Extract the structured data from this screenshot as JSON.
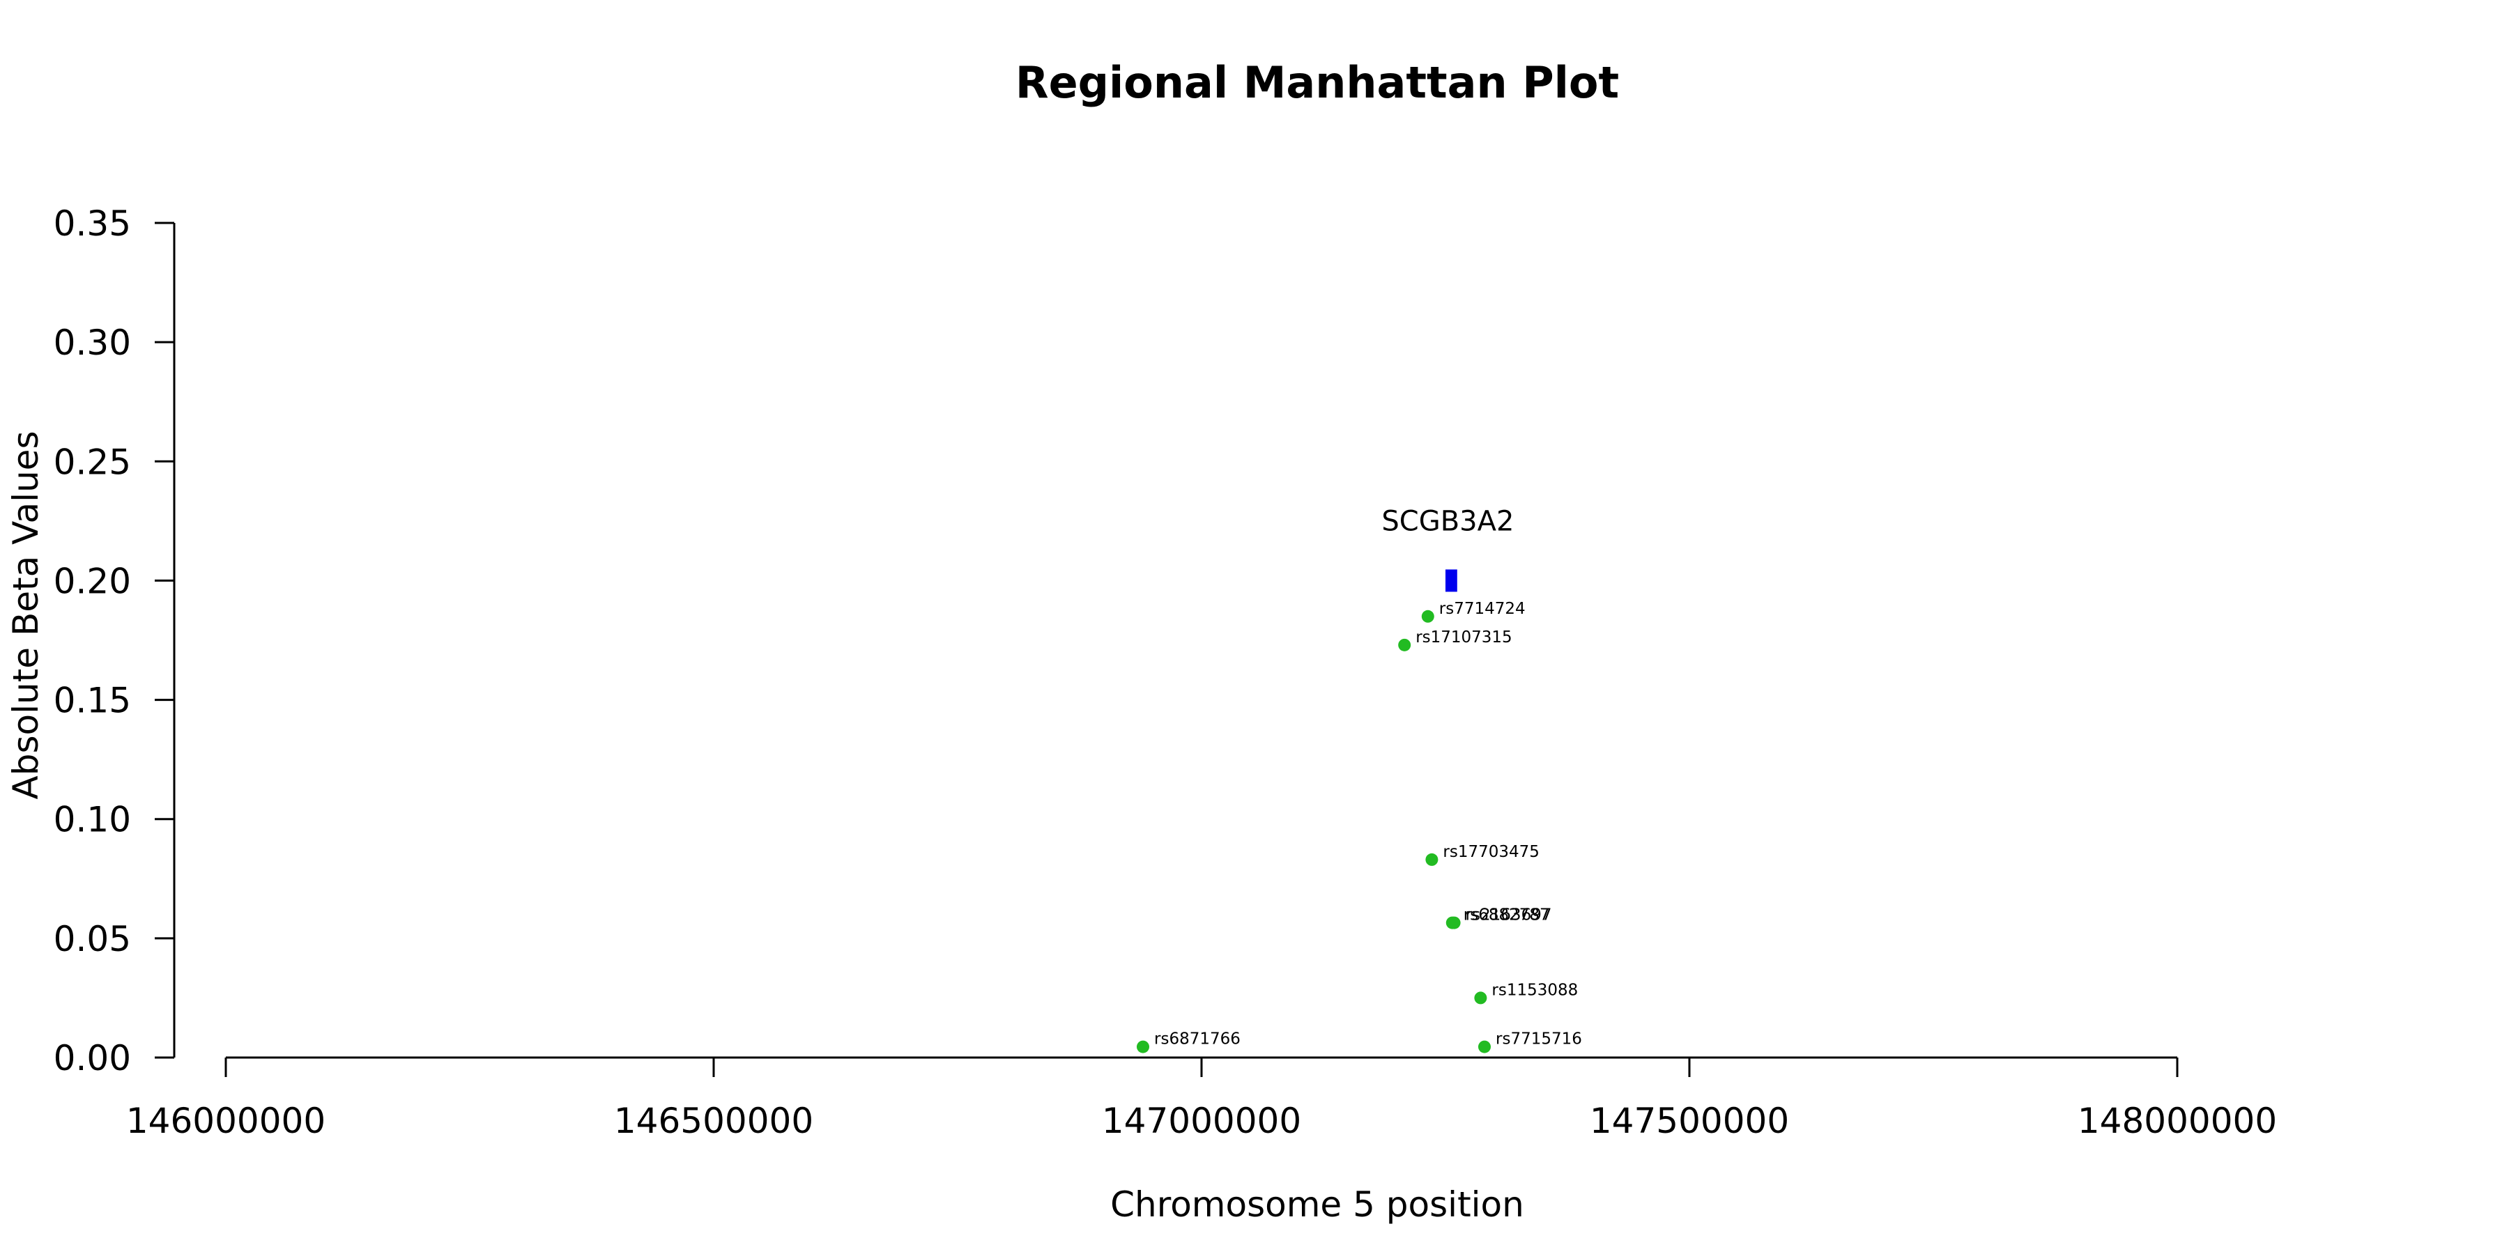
{
  "chart_data": {
    "type": "scatter",
    "title": "Regional Manhattan Plot",
    "xlabel": "Chromosome 5 position",
    "ylabel": "Absolute Beta Values",
    "xlim": [
      146000000,
      148000000
    ],
    "ylim": [
      0,
      0.35
    ],
    "x_ticks": [
      146000000,
      146500000,
      147000000,
      147500000,
      148000000
    ],
    "x_tick_labels": [
      "146000000",
      "146500000",
      "147000000",
      "147500000",
      "148000000"
    ],
    "y_ticks": [
      0,
      0.05,
      0.1,
      0.15,
      0.2,
      0.25,
      0.3,
      0.35
    ],
    "y_tick_labels": [
      "0.00",
      "0.05",
      "0.10",
      "0.15",
      "0.20",
      "0.25",
      "0.30",
      "0.35"
    ],
    "grid": false,
    "legend": "none",
    "point_color": "#22bb22",
    "gene_color": "#0000ee",
    "gene": {
      "name": "SCGB3A2",
      "start": 147250000,
      "end": 147262000,
      "y": 0.2
    },
    "points": [
      {
        "label": "rs7714724",
        "x": 147232000,
        "y": 0.185
      },
      {
        "label": "rs17107315",
        "x": 147208000,
        "y": 0.173
      },
      {
        "label": "rs17703475",
        "x": 147236000,
        "y": 0.083
      },
      {
        "label": "rs6882787",
        "x": 147257000,
        "y": 0.0565
      },
      {
        "label": "rs2163697",
        "x": 147259000,
        "y": 0.0565
      },
      {
        "label": "rs1153088",
        "x": 147286000,
        "y": 0.025
      },
      {
        "label": "rs6871766",
        "x": 146940000,
        "y": 0.0045
      },
      {
        "label": "rs7715716",
        "x": 147290000,
        "y": 0.0045
      }
    ]
  }
}
